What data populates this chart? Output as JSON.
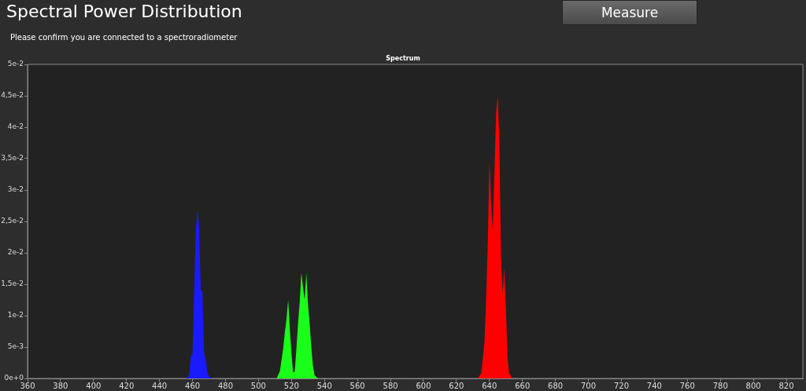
{
  "chart_data": {
    "type": "area",
    "title": "Spectral Power Distribution",
    "subtitle": "Please confirm you are connected to a spectroradiometer",
    "annotations": [
      "Measure",
      "Spectrum"
    ],
    "xlim": [
      360,
      830
    ],
    "xticks": [
      360,
      380,
      400,
      420,
      440,
      460,
      480,
      500,
      520,
      540,
      560,
      580,
      600,
      620,
      640,
      660,
      680,
      700,
      720,
      740,
      760,
      780,
      800,
      820
    ],
    "ylim": [
      0,
      0.05
    ],
    "yticks": [
      {
        "value": 0,
        "label": "0e+0"
      },
      {
        "value": 0.005,
        "label": "5e-3"
      },
      {
        "value": 0.01,
        "label": "1e-2"
      },
      {
        "value": 0.015,
        "label": "1,5e-2"
      },
      {
        "value": 0.02,
        "label": "2e-2"
      },
      {
        "value": 0.025,
        "label": "2,5e-2"
      },
      {
        "value": 0.03,
        "label": "3e-2"
      },
      {
        "value": 0.035,
        "label": "3,5e-2"
      },
      {
        "value": 0.04,
        "label": "4e-2"
      },
      {
        "value": 0.045,
        "label": "4,5e-2"
      },
      {
        "value": 0.05,
        "label": "5e-2"
      }
    ],
    "grid": false,
    "legend": false,
    "series": [
      {
        "color": "#1a1aff",
        "x": [
          456,
          458,
          459,
          460,
          461,
          462,
          463,
          464,
          465,
          466,
          467,
          468,
          469,
          470,
          472
        ],
        "values": [
          0,
          0.0005,
          0.0035,
          0.0038,
          0.014,
          0.0235,
          0.027,
          0.024,
          0.014,
          0.0138,
          0.004,
          0.003,
          0.001,
          0.0003,
          0
        ]
      },
      {
        "color": "#1aff1a",
        "x": [
          511,
          513,
          514,
          515,
          516,
          517,
          518,
          519,
          520,
          521,
          522,
          523,
          524,
          525,
          526,
          527,
          528,
          529,
          530,
          531,
          532,
          533,
          534,
          536
        ],
        "values": [
          0,
          0.0012,
          0.003,
          0.0048,
          0.0074,
          0.0095,
          0.0125,
          0.0078,
          0.004,
          0.0009,
          0.0012,
          0.0048,
          0.0088,
          0.0122,
          0.0168,
          0.0145,
          0.0125,
          0.0168,
          0.0118,
          0.0088,
          0.005,
          0.002,
          0.0005,
          0
        ]
      },
      {
        "color": "#ff0000",
        "x": [
          633,
          635,
          636,
          637,
          638,
          639,
          640,
          641,
          642,
          643,
          644,
          645,
          646,
          647,
          648,
          649,
          650,
          651,
          652,
          654
        ],
        "values": [
          0,
          0.0008,
          0.0032,
          0.0058,
          0.0125,
          0.0215,
          0.0346,
          0.028,
          0.0235,
          0.032,
          0.042,
          0.045,
          0.038,
          0.0195,
          0.0135,
          0.0176,
          0.011,
          0.0032,
          0.0008,
          0
        ]
      }
    ]
  }
}
